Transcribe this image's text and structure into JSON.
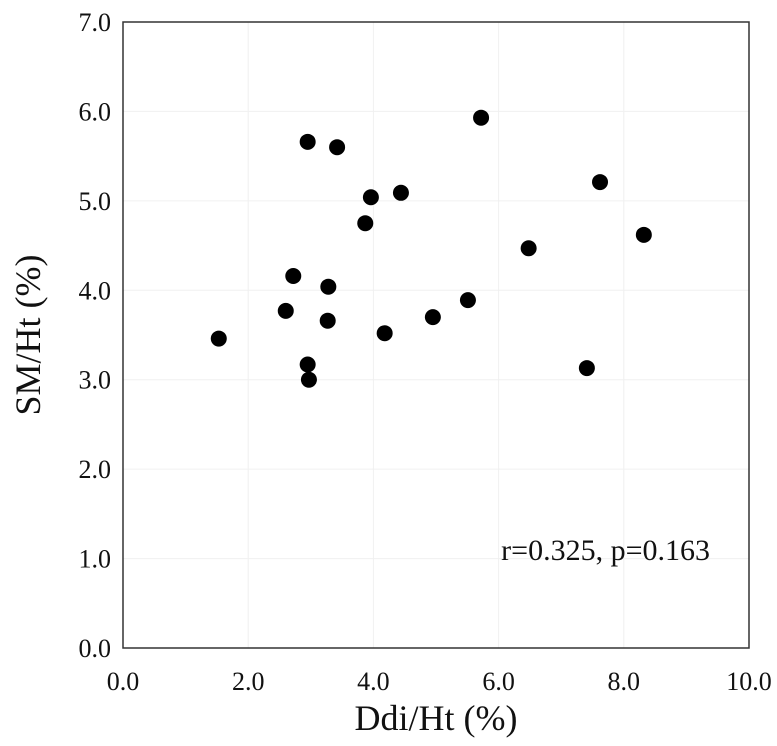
{
  "chart_data": {
    "type": "scatter",
    "xlabel": "Ddi/Ht (%)",
    "ylabel": "SM/Ht (%)",
    "xlim": [
      0,
      10
    ],
    "ylim": [
      0,
      7
    ],
    "xticks": [
      "0.0",
      "2.0",
      "4.0",
      "6.0",
      "8.0",
      "10.0"
    ],
    "yticks": [
      "0.0",
      "1.0",
      "2.0",
      "3.0",
      "4.0",
      "5.0",
      "6.0",
      "7.0"
    ],
    "grid": true,
    "marker_color": "#000000",
    "annotation": "r=0.325, p=0.163",
    "points": [
      {
        "x": 1.53,
        "y": 3.46
      },
      {
        "x": 2.95,
        "y": 5.66
      },
      {
        "x": 3.42,
        "y": 5.6
      },
      {
        "x": 5.72,
        "y": 5.93
      },
      {
        "x": 7.62,
        "y": 5.21
      },
      {
        "x": 3.96,
        "y": 5.04
      },
      {
        "x": 4.44,
        "y": 5.09
      },
      {
        "x": 3.87,
        "y": 4.75
      },
      {
        "x": 6.48,
        "y": 4.47
      },
      {
        "x": 8.32,
        "y": 4.62
      },
      {
        "x": 2.72,
        "y": 4.16
      },
      {
        "x": 3.28,
        "y": 4.04
      },
      {
        "x": 2.6,
        "y": 3.77
      },
      {
        "x": 3.27,
        "y": 3.66
      },
      {
        "x": 4.18,
        "y": 3.52
      },
      {
        "x": 4.95,
        "y": 3.7
      },
      {
        "x": 5.51,
        "y": 3.89
      },
      {
        "x": 2.95,
        "y": 3.17
      },
      {
        "x": 2.97,
        "y": 3.0
      },
      {
        "x": 7.41,
        "y": 3.13
      }
    ]
  }
}
